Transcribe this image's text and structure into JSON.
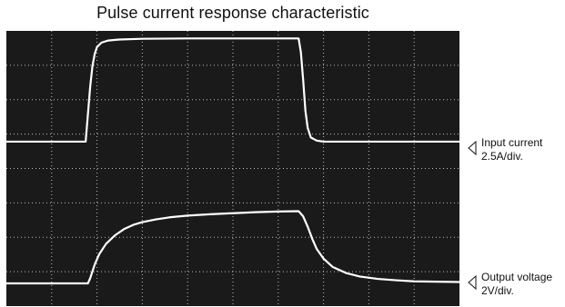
{
  "chart_data": {
    "type": "line",
    "title": "Pulse current response characteristic",
    "x_divisions": 10,
    "y_divisions": 8,
    "grid": "dotted",
    "background": "#1a1a1a",
    "trace_color": "#ffffff",
    "grid_color": "#bdbdbd",
    "series": [
      {
        "name": "Input current",
        "scale": "2.5A/div.",
        "points": [
          [
            0,
            0
          ],
          [
            1.75,
            0
          ],
          [
            1.8,
            0.8
          ],
          [
            1.85,
            1.6
          ],
          [
            1.9,
            2.2
          ],
          [
            1.95,
            2.55
          ],
          [
            2.0,
            2.75
          ],
          [
            2.1,
            2.88
          ],
          [
            2.25,
            2.94
          ],
          [
            2.5,
            2.97
          ],
          [
            3.0,
            2.99
          ],
          [
            4.0,
            3.0
          ],
          [
            5.0,
            3.0
          ],
          [
            6.0,
            3.0
          ],
          [
            6.45,
            3.0
          ],
          [
            6.5,
            2.6
          ],
          [
            6.55,
            1.8
          ],
          [
            6.6,
            0.9
          ],
          [
            6.65,
            0.4
          ],
          [
            6.72,
            0.12
          ],
          [
            6.85,
            0.03
          ],
          [
            7.0,
            0
          ],
          [
            8.0,
            0
          ],
          [
            10.0,
            0
          ]
        ]
      },
      {
        "name": "Output voltage",
        "scale": "2V/div.",
        "points": [
          [
            0,
            0
          ],
          [
            1.8,
            0
          ],
          [
            1.85,
            0.15
          ],
          [
            1.95,
            0.55
          ],
          [
            2.05,
            0.85
          ],
          [
            2.2,
            1.15
          ],
          [
            2.4,
            1.4
          ],
          [
            2.6,
            1.58
          ],
          [
            2.8,
            1.7
          ],
          [
            3.0,
            1.78
          ],
          [
            3.3,
            1.86
          ],
          [
            3.6,
            1.92
          ],
          [
            4.0,
            1.97
          ],
          [
            4.5,
            2.01
          ],
          [
            5.0,
            2.04
          ],
          [
            5.5,
            2.07
          ],
          [
            6.0,
            2.09
          ],
          [
            6.45,
            2.1
          ],
          [
            6.55,
            1.95
          ],
          [
            6.65,
            1.65
          ],
          [
            6.75,
            1.3
          ],
          [
            6.85,
            1.0
          ],
          [
            7.0,
            0.72
          ],
          [
            7.2,
            0.48
          ],
          [
            7.5,
            0.3
          ],
          [
            7.8,
            0.2
          ],
          [
            8.2,
            0.13
          ],
          [
            8.6,
            0.09
          ],
          [
            9.0,
            0.06
          ],
          [
            9.5,
            0.05
          ],
          [
            10.0,
            0.04
          ]
        ]
      }
    ]
  },
  "labels": {
    "current_name": "Input current",
    "current_scale": "2.5A/div.",
    "voltage_name": "Output voltage",
    "voltage_scale": "2V/div."
  }
}
